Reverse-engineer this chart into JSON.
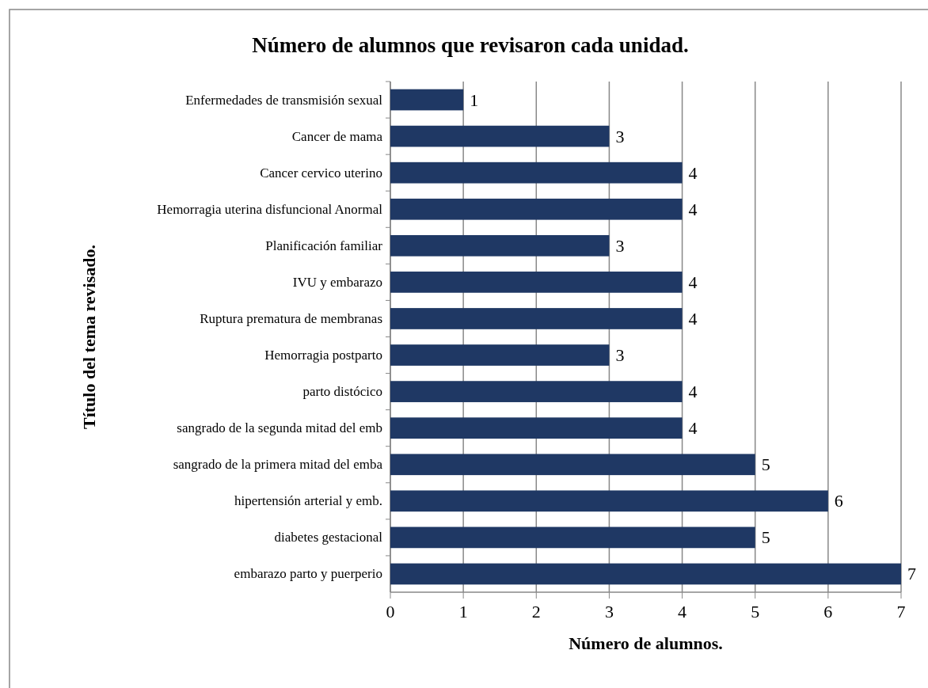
{
  "chart_data": {
    "type": "bar",
    "orientation": "horizontal",
    "title": "Número de alumnos que revisaron cada unidad.",
    "xlabel": "Número de alumnos.",
    "ylabel": "Título del tema revisado.",
    "categories": [
      "Enfermedades de transmisión sexual",
      "Cancer de mama",
      "Cancer cervico uterino",
      "Hemorragia uterina disfuncional Anormal",
      "Planificación familiar",
      "IVU y embarazo",
      "Ruptura prematura de membranas",
      "Hemorragia postparto",
      "parto distócico",
      "sangrado de la segunda mitad del emb",
      "sangrado de la primera mitad del emba",
      "hipertensión arterial y emb.",
      "diabetes gestacional",
      "embarazo parto y puerperio"
    ],
    "values": [
      1,
      3,
      4,
      4,
      3,
      4,
      4,
      3,
      4,
      4,
      5,
      6,
      5,
      7
    ],
    "color": "#1f3864",
    "xlim": [
      0,
      7
    ],
    "xticks": [
      0,
      1,
      2,
      3,
      4,
      5,
      6,
      7
    ],
    "grid": "x",
    "data_labels": true
  }
}
